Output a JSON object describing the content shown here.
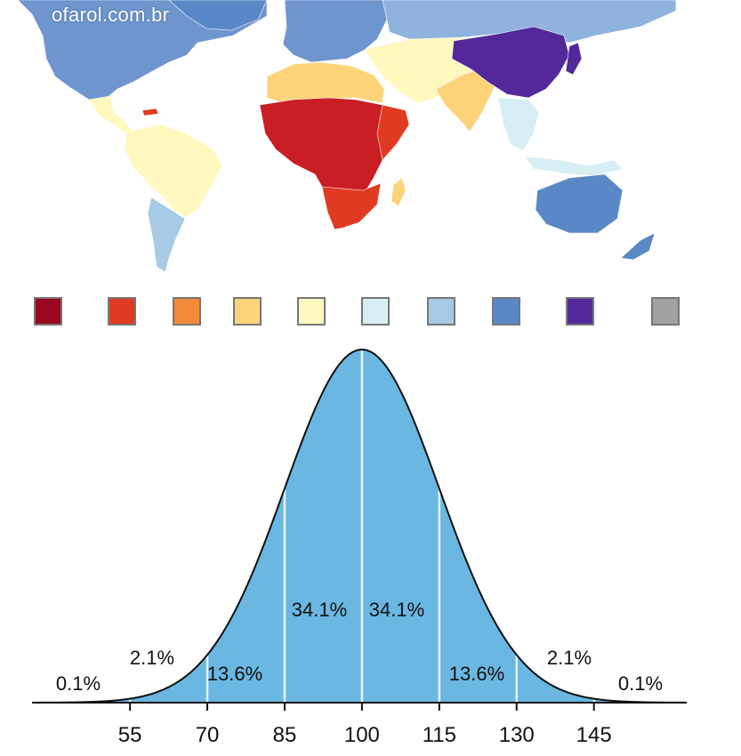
{
  "watermark": "ofarol.com.br",
  "colors": {
    "ocean": "#ffffff",
    "curve_fill": "#6ab7e2",
    "divider": "#e8f3fb",
    "outline": "#111111"
  },
  "legend": {
    "swatches": [
      {
        "color": "#9b0720"
      },
      {
        "color": "#e03b22"
      },
      {
        "color": "#f58a3a"
      },
      {
        "color": "#fdd37a"
      },
      {
        "color": "#fff8bf"
      },
      {
        "color": "#d8eef5"
      },
      {
        "color": "#a7cbe4"
      },
      {
        "color": "#5a88c7"
      },
      {
        "color": "#52289a"
      },
      {
        "color": "#a2a2a2"
      }
    ]
  },
  "map_regions": {
    "north_america": "#6f95cf",
    "greenland": "#5a88c7",
    "central_america": "#fff8bf",
    "south_america": "#fff8bf",
    "southern_cone": "#a7cbe4",
    "europe": "#6f95cf",
    "russia": "#8fb3de",
    "north_africa": "#fdd37a",
    "middle_east": "#fff8bf",
    "central_africa": "#c81e24",
    "east_africa": "#e03b22",
    "southern_africa": "#e03b22",
    "south_asia": "#fdd37a",
    "china": "#52289a",
    "japan": "#52289a",
    "southeast_asia": "#d8eef5",
    "indonesia": "#d8eef5",
    "australia": "#5a88c7",
    "new_zealand": "#5a88c7"
  },
  "chart_data": {
    "type": "area",
    "distribution": "normal",
    "mean": 100,
    "sd": 15,
    "x_range": [
      36,
      163
    ],
    "ticks": [
      55,
      70,
      85,
      100,
      115,
      130,
      145
    ],
    "tick_labels": [
      "55",
      "70",
      "85",
      "100",
      "115",
      "130",
      "145"
    ],
    "segments": [
      {
        "label": "0.1%",
        "from": 36,
        "to": 55
      },
      {
        "label": "2.1%",
        "from": 55,
        "to": 70
      },
      {
        "label": "13.6%",
        "from": 70,
        "to": 85
      },
      {
        "label": "34.1%",
        "from": 85,
        "to": 100
      },
      {
        "label": "34.1%",
        "from": 100,
        "to": 115
      },
      {
        "label": "13.6%",
        "from": 115,
        "to": 130
      },
      {
        "label": "2.1%",
        "from": 130,
        "to": 145
      },
      {
        "label": "0.1%",
        "from": 145,
        "to": 163
      }
    ]
  }
}
